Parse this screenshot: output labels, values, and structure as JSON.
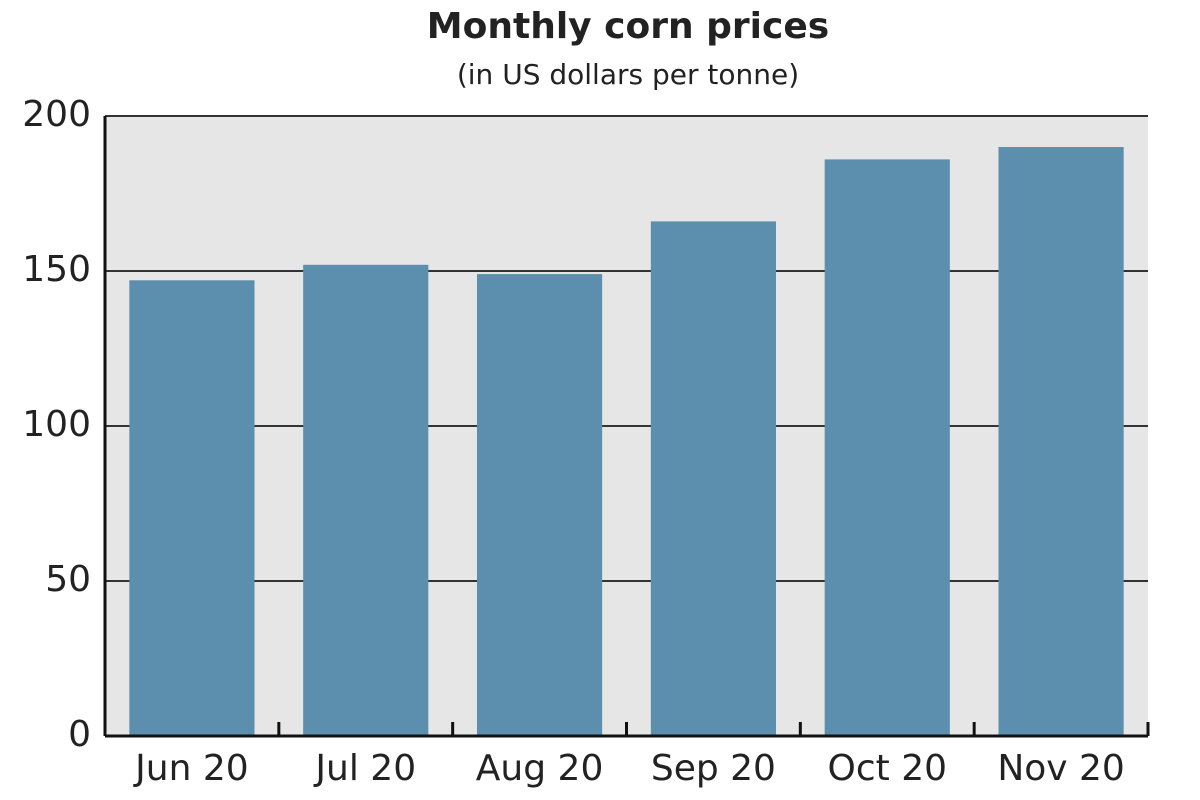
{
  "chart_data": {
    "type": "bar",
    "title": "Monthly corn prices",
    "subtitle": "(in US dollars per tonne)",
    "categories": [
      "Jun 20",
      "Jul 20",
      "Aug 20",
      "Sep 20",
      "Oct 20",
      "Nov 20"
    ],
    "values": [
      147,
      152,
      149,
      166,
      186,
      190
    ],
    "color": "#5b8fad",
    "ylim": [
      0,
      200
    ],
    "yticks": [
      0,
      50,
      100,
      150,
      200
    ],
    "grid": true
  }
}
